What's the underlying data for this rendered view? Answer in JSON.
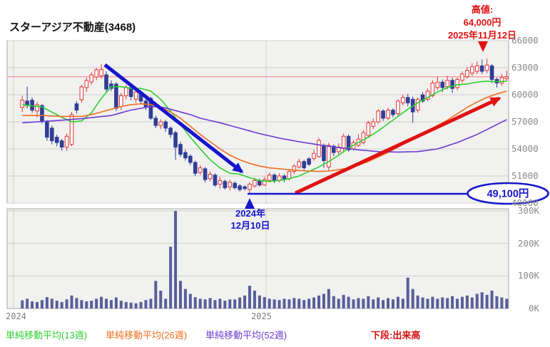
{
  "title": "スターアジア不動産(3468)",
  "annotations": {
    "high": {
      "line1": "高値:",
      "line2": "64,000円",
      "line3": "2025年11月12日"
    },
    "low": {
      "line1": "2024年",
      "line2": "12月10日"
    },
    "low_price_badge": "49,100円"
  },
  "axes": {
    "price_ticks": [
      "66000",
      "63000",
      "60000",
      "57000",
      "54000",
      "51000",
      "48000"
    ],
    "volume_ticks": [
      "300K",
      "200K",
      "100K",
      "0K"
    ],
    "year_ticks": [
      "2024",
      "2025"
    ]
  },
  "legend": {
    "items": [
      {
        "label": "単純移動平均(13週)",
        "color": "#30cf30",
        "bold": false
      },
      {
        "label": "単純移動平均(26週)",
        "color": "#ec6f22",
        "bold": false
      },
      {
        "label": "単純移動平均(52週)",
        "color": "#6c3ad2",
        "bold": false
      },
      {
        "label": "下段:出来高",
        "color": "#d41414",
        "bold": true
      }
    ]
  },
  "colors": {
    "panel_bg": "#f1f1ef",
    "panel_border": "#a9a9a9",
    "grid": "#cfcfcf",
    "up_candle": "#e23434",
    "down_candle": "#303d96",
    "volume_bar": "#585f9b",
    "ma13": "#30cf30",
    "ma26": "#ec6f22",
    "ma52": "#6c3ad2",
    "annotation_blue": "#1515cd",
    "annotation_red": "#e01212",
    "last_price_line": "#f59c9c"
  },
  "chart_data": {
    "type": "candlestick",
    "frequency": "weekly",
    "x_range": [
      "2024",
      "2025"
    ],
    "price_axis": {
      "min": 48000,
      "max": 66000,
      "step": 3000
    },
    "volume_axis": {
      "min": 0,
      "max": 300000,
      "unit": "K"
    },
    "reference_lines": {
      "last_price": 62000,
      "support_low": 49100
    },
    "key_points": {
      "high": {
        "price": 64000,
        "date": "2025年11月12日"
      },
      "low": {
        "price": 49100,
        "date": "2024年12月10日"
      }
    },
    "candles_ohlc": [
      [
        58600,
        59900,
        58100,
        59400
      ],
      [
        59300,
        60900,
        58500,
        58800
      ],
      [
        59400,
        59700,
        58000,
        58300
      ],
      [
        58200,
        59200,
        57500,
        58900
      ],
      [
        58800,
        59000,
        56800,
        57100
      ],
      [
        57000,
        57200,
        54900,
        55300
      ],
      [
        56300,
        56600,
        54500,
        54900
      ],
      [
        55300,
        55600,
        54300,
        54700
      ],
      [
        54900,
        55100,
        53800,
        54200
      ],
      [
        54200,
        55700,
        53800,
        55400
      ],
      [
        54500,
        58100,
        54300,
        57800
      ],
      [
        59000,
        59300,
        57900,
        58300
      ],
      [
        59450,
        61100,
        59100,
        60870
      ],
      [
        60790,
        61900,
        60300,
        61580
      ],
      [
        61420,
        62500,
        61100,
        62210
      ],
      [
        61970,
        63000,
        61600,
        62760
      ],
      [
        62100,
        63400,
        61800,
        62800
      ],
      [
        62210,
        62600,
        60300,
        60630
      ],
      [
        61200,
        61600,
        60400,
        60700
      ],
      [
        61180,
        61400,
        58200,
        58500
      ],
      [
        58700,
        60200,
        58300,
        59900
      ],
      [
        59900,
        61100,
        59500,
        60800
      ],
      [
        60800,
        61000,
        59400,
        59800
      ],
      [
        59500,
        60600,
        59100,
        60300
      ],
      [
        60300,
        60500,
        59000,
        59300
      ],
      [
        59300,
        59600,
        58300,
        58700
      ],
      [
        59600,
        59800,
        57200,
        57400
      ],
      [
        57400,
        57700,
        56300,
        56600
      ],
      [
        56600,
        57300,
        56200,
        57000
      ],
      [
        57000,
        57200,
        55900,
        56300
      ],
      [
        56300,
        56500,
        55200,
        55600
      ],
      [
        55800,
        56000,
        52800,
        54200
      ],
      [
        54500,
        54800,
        53100,
        53400
      ],
      [
        53600,
        53900,
        52700,
        53000
      ],
      [
        53200,
        53400,
        52200,
        52500
      ],
      [
        52500,
        52700,
        51000,
        51300
      ],
      [
        51400,
        52200,
        51100,
        51900
      ],
      [
        51800,
        52000,
        50300,
        50600
      ],
      [
        50700,
        51500,
        50400,
        51200
      ],
      [
        51100,
        51300,
        49800,
        50000
      ],
      [
        50100,
        50900,
        49600,
        50500
      ],
      [
        50400,
        50600,
        49500,
        49700
      ],
      [
        49800,
        50600,
        49400,
        50300
      ],
      [
        50200,
        50400,
        49500,
        49700
      ],
      [
        49900,
        50100,
        49300,
        49500
      ],
      [
        49800,
        50000,
        49400,
        49600
      ],
      [
        49500,
        50300,
        49100,
        50100
      ],
      [
        49900,
        50800,
        49700,
        50500
      ],
      [
        50500,
        50700,
        49800,
        50000
      ],
      [
        50000,
        50900,
        49900,
        50600
      ],
      [
        50500,
        51400,
        50300,
        51100
      ],
      [
        51100,
        51300,
        50200,
        50500
      ],
      [
        50500,
        51300,
        50300,
        51000
      ],
      [
        51000,
        51200,
        50300,
        50600
      ],
      [
        50700,
        51700,
        50500,
        51500
      ],
      [
        51500,
        52300,
        51200,
        52100
      ],
      [
        52000,
        52900,
        51800,
        52600
      ],
      [
        52600,
        52800,
        51600,
        51900
      ],
      [
        52900,
        53100,
        52100,
        52300
      ],
      [
        52950,
        53900,
        52700,
        53500
      ],
      [
        53150,
        55200,
        53000,
        54950
      ],
      [
        54400,
        54600,
        51900,
        52700
      ],
      [
        52000,
        54700,
        51500,
        54400
      ],
      [
        54300,
        54500,
        53200,
        53600
      ],
      [
        53700,
        54600,
        53400,
        54200
      ],
      [
        54100,
        55700,
        53600,
        55400
      ],
      [
        55400,
        55600,
        53700,
        53900
      ],
      [
        54000,
        55000,
        53800,
        54700
      ],
      [
        54400,
        55600,
        54200,
        55100
      ],
      [
        54700,
        56100,
        54500,
        55800
      ],
      [
        55500,
        57100,
        55300,
        56900
      ],
      [
        56500,
        57400,
        56200,
        57000
      ],
      [
        57000,
        58400,
        56800,
        58200
      ],
      [
        58200,
        58400,
        57100,
        57400
      ],
      [
        57400,
        58600,
        57200,
        58300
      ],
      [
        58300,
        58500,
        57500,
        57800
      ],
      [
        57900,
        59500,
        57700,
        59300
      ],
      [
        59100,
        60000,
        58800,
        59700
      ],
      [
        59700,
        60100,
        58700,
        59100
      ],
      [
        59500,
        59800,
        56900,
        58100
      ],
      [
        58300,
        59700,
        58000,
        59500
      ],
      [
        60000,
        60300,
        59100,
        59300
      ],
      [
        59500,
        60700,
        59300,
        60400
      ],
      [
        59900,
        61600,
        59700,
        61300
      ],
      [
        60800,
        62000,
        60500,
        61400
      ],
      [
        61400,
        61700,
        60300,
        60800
      ],
      [
        60900,
        62100,
        60600,
        61600
      ],
      [
        61600,
        61900,
        60200,
        60700
      ],
      [
        60800,
        61900,
        60500,
        61700
      ],
      [
        61600,
        62600,
        61300,
        62300
      ],
      [
        62000,
        63100,
        61800,
        62700
      ],
      [
        62400,
        63500,
        62100,
        63100
      ],
      [
        62600,
        63700,
        62300,
        63200
      ],
      [
        63200,
        63900,
        62300,
        62600
      ],
      [
        62700,
        64000,
        62400,
        63300
      ],
      [
        63200,
        63400,
        61300,
        61700
      ],
      [
        61700,
        61900,
        60800,
        61300
      ],
      [
        61300,
        62300,
        61000,
        61900
      ],
      [
        61800,
        62700,
        61500,
        62000
      ]
    ],
    "volumes_k": [
      25,
      30,
      22,
      20,
      26,
      35,
      30,
      24,
      20,
      28,
      40,
      32,
      26,
      22,
      24,
      30,
      36,
      30,
      26,
      34,
      24,
      20,
      18,
      16,
      20,
      26,
      30,
      85,
      55,
      30,
      190,
      300,
      85,
      60,
      45,
      35,
      30,
      28,
      32,
      26,
      30,
      24,
      28,
      28,
      34,
      40,
      70,
      55,
      40,
      35,
      30,
      28,
      26,
      30,
      28,
      32,
      30,
      26,
      30,
      34,
      40,
      45,
      60,
      38,
      30,
      42,
      36,
      28,
      32,
      30,
      38,
      28,
      34,
      26,
      32,
      28,
      36,
      30,
      95,
      60,
      40,
      34,
      30,
      36,
      30,
      34,
      32,
      38,
      30,
      36,
      40,
      34,
      45,
      50,
      42,
      55,
      38,
      34,
      30
    ],
    "moving_averages": [
      {
        "name": "単純移動平均(13週)",
        "period": 13,
        "color": "#30cf30",
        "anchors": [
          [
            0,
            58900
          ],
          [
            4,
            58650
          ],
          [
            8,
            57500
          ],
          [
            10,
            57000
          ],
          [
            12,
            57100
          ],
          [
            14,
            58000
          ],
          [
            16,
            59600
          ],
          [
            18,
            60900
          ],
          [
            20,
            60900
          ],
          [
            22,
            60700
          ],
          [
            24,
            60700
          ],
          [
            26,
            60400
          ],
          [
            28,
            59500
          ],
          [
            30,
            58200
          ],
          [
            32,
            56700
          ],
          [
            34,
            55300
          ],
          [
            36,
            54000
          ],
          [
            38,
            52800
          ],
          [
            40,
            51900
          ],
          [
            42,
            51300
          ],
          [
            44,
            51200
          ],
          [
            46,
            50800
          ],
          [
            48,
            50500
          ],
          [
            50,
            50400
          ],
          [
            52,
            50500
          ],
          [
            54,
            50700
          ],
          [
            56,
            51000
          ],
          [
            58,
            51500
          ],
          [
            60,
            52000
          ],
          [
            62,
            52600
          ],
          [
            64,
            53300
          ],
          [
            66,
            54100
          ],
          [
            68,
            54700
          ],
          [
            70,
            55300
          ],
          [
            72,
            56000
          ],
          [
            74,
            56800
          ],
          [
            76,
            57600
          ],
          [
            78,
            58400
          ],
          [
            80,
            59100
          ],
          [
            82,
            59700
          ],
          [
            84,
            60300
          ],
          [
            86,
            60800
          ],
          [
            88,
            61100
          ],
          [
            90,
            61200
          ],
          [
            92,
            61400
          ],
          [
            94,
            61500
          ],
          [
            96,
            61450
          ],
          [
            98,
            61500
          ]
        ]
      },
      {
        "name": "単純移動平均(26週)",
        "period": 26,
        "color": "#ec6f22",
        "anchors": [
          [
            0,
            57700
          ],
          [
            4,
            57700
          ],
          [
            8,
            57600
          ],
          [
            12,
            57600
          ],
          [
            14,
            57800
          ],
          [
            16,
            58100
          ],
          [
            18,
            58400
          ],
          [
            20,
            58700
          ],
          [
            22,
            58900
          ],
          [
            24,
            59000
          ],
          [
            26,
            58900
          ],
          [
            28,
            58600
          ],
          [
            30,
            58100
          ],
          [
            32,
            57400
          ],
          [
            34,
            56500
          ],
          [
            36,
            55600
          ],
          [
            38,
            54800
          ],
          [
            40,
            54000
          ],
          [
            42,
            53300
          ],
          [
            44,
            52800
          ],
          [
            46,
            52400
          ],
          [
            48,
            52100
          ],
          [
            50,
            51900
          ],
          [
            52,
            51800
          ],
          [
            54,
            51700
          ],
          [
            56,
            51600
          ],
          [
            58,
            51550
          ],
          [
            60,
            51500
          ],
          [
            62,
            51550
          ],
          [
            64,
            51700
          ],
          [
            66,
            51900
          ],
          [
            68,
            52200
          ],
          [
            70,
            52600
          ],
          [
            72,
            53100
          ],
          [
            74,
            53600
          ],
          [
            76,
            54200
          ],
          [
            78,
            54800
          ],
          [
            80,
            55400
          ],
          [
            82,
            56000
          ],
          [
            84,
            56600
          ],
          [
            86,
            57200
          ],
          [
            88,
            57900
          ],
          [
            90,
            58600
          ],
          [
            92,
            59200
          ],
          [
            94,
            59700
          ],
          [
            96,
            60100
          ],
          [
            98,
            60400
          ]
        ]
      },
      {
        "name": "単純移動平均(52週)",
        "period": 52,
        "color": "#6c3ad2",
        "anchors": [
          [
            0,
            56900
          ],
          [
            6,
            57100
          ],
          [
            12,
            57350
          ],
          [
            18,
            57700
          ],
          [
            22,
            58300
          ],
          [
            26,
            58700
          ],
          [
            28,
            58650
          ],
          [
            30,
            58400
          ],
          [
            32,
            58100
          ],
          [
            34,
            57800
          ],
          [
            36,
            57400
          ],
          [
            40,
            56900
          ],
          [
            44,
            56300
          ],
          [
            48,
            55700
          ],
          [
            52,
            55200
          ],
          [
            56,
            54800
          ],
          [
            60,
            54450
          ],
          [
            64,
            54150
          ],
          [
            68,
            53900
          ],
          [
            72,
            53700
          ],
          [
            76,
            53650
          ],
          [
            80,
            53700
          ],
          [
            84,
            54000
          ],
          [
            88,
            54700
          ],
          [
            92,
            55600
          ],
          [
            96,
            56700
          ],
          [
            98,
            57250
          ]
        ]
      }
    ]
  }
}
